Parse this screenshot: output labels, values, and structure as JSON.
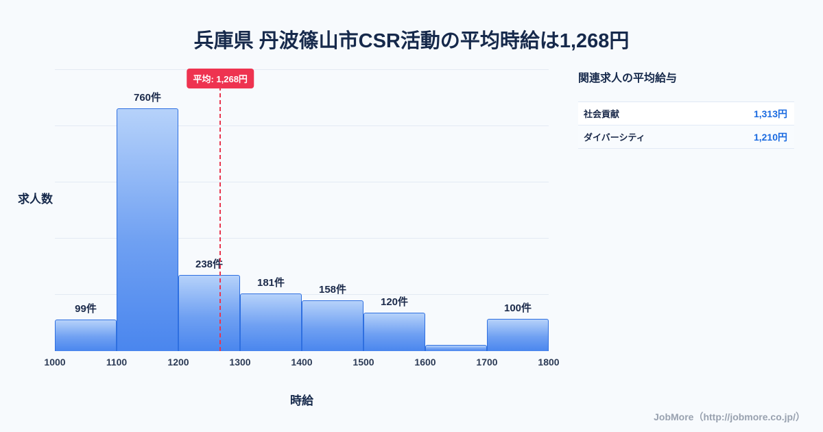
{
  "title": "兵庫県 丹波篠山市CSR活動の平均時給は1,268円",
  "chart_data": {
    "type": "bar",
    "title": "兵庫県 丹波篠山市CSR活動の平均時給は1,268円",
    "xlabel": "時給",
    "ylabel": "求人数",
    "xlim": [
      1000,
      1800
    ],
    "ylim": [
      0,
      880
    ],
    "grid": true,
    "x_ticks": [
      "1000",
      "1100",
      "1200",
      "1300",
      "1400",
      "1500",
      "1600",
      "1700",
      "1800"
    ],
    "bins": [
      {
        "range": [
          1000,
          1100
        ],
        "value": 99,
        "label": "99件"
      },
      {
        "range": [
          1100,
          1200
        ],
        "value": 760,
        "label": "760件"
      },
      {
        "range": [
          1200,
          1300
        ],
        "value": 238,
        "label": "238件"
      },
      {
        "range": [
          1300,
          1400
        ],
        "value": 181,
        "label": "181件"
      },
      {
        "range": [
          1400,
          1500
        ],
        "value": 158,
        "label": "158件"
      },
      {
        "range": [
          1500,
          1600
        ],
        "value": 120,
        "label": "120件"
      },
      {
        "range": [
          1600,
          1700
        ],
        "value": 20,
        "label": ""
      },
      {
        "range": [
          1700,
          1800
        ],
        "value": 100,
        "label": "100件"
      }
    ],
    "mean_line": {
      "x": 1268,
      "label": "平均: 1,268円"
    }
  },
  "side_panel": {
    "title": "関連求人の平均給与",
    "rows": [
      {
        "label": "社会貢献",
        "value": "1,313円"
      },
      {
        "label": "ダイバーシティ",
        "value": "1,210円"
      }
    ]
  },
  "footer": {
    "credit": "JobMore（http://jobmore.co.jp/）"
  },
  "colors": {
    "background": "#f7fafd",
    "bar_fill_top": "#b6d2fa",
    "bar_fill_bottom": "#4a86ee",
    "bar_border": "#2e6fe0",
    "mean_red": "#ee3350",
    "value_blue": "#1a6ae0",
    "title_navy": "#16294b"
  }
}
